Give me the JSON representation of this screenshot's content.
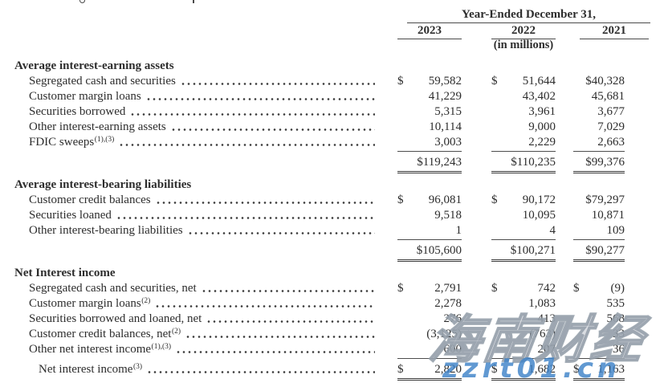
{
  "header": {
    "title": "Year-Ended December 31,",
    "years": [
      "2023",
      "2022",
      "2021"
    ],
    "unit_note": "(in millions)"
  },
  "sections": [
    {
      "title": "Average interest-earning assets",
      "rows": [
        {
          "label": "Segregated cash and securities",
          "sup": "",
          "cells": [
            {
              "d": "$",
              "v": "59,582"
            },
            {
              "d": "$",
              "v": "51,644"
            },
            {
              "d": "",
              "v": "$40,328"
            }
          ]
        },
        {
          "label": "Customer margin loans",
          "sup": "",
          "cells": [
            {
              "d": "",
              "v": "41,229"
            },
            {
              "d": "",
              "v": "43,402"
            },
            {
              "d": "",
              "v": "45,681"
            }
          ]
        },
        {
          "label": "Securities borrowed",
          "sup": "",
          "cells": [
            {
              "d": "",
              "v": "5,315"
            },
            {
              "d": "",
              "v": "3,961"
            },
            {
              "d": "",
              "v": "3,677"
            }
          ]
        },
        {
          "label": "Other interest-earning assets",
          "sup": "",
          "cells": [
            {
              "d": "",
              "v": "10,114"
            },
            {
              "d": "",
              "v": "9,000"
            },
            {
              "d": "",
              "v": "7,029"
            }
          ]
        },
        {
          "label": "FDIC sweeps",
          "sup": "(1),(3)",
          "rule_below": true,
          "cells": [
            {
              "d": "",
              "v": "3,003"
            },
            {
              "d": "",
              "v": "2,229"
            },
            {
              "d": "",
              "v": "2,663"
            }
          ]
        }
      ],
      "total": {
        "label": "",
        "sup": "",
        "cells": [
          {
            "d": "",
            "v": "$119,243"
          },
          {
            "d": "",
            "v": "$110,235"
          },
          {
            "d": "",
            "v": "$99,376"
          }
        ]
      }
    },
    {
      "title": "Average interest-bearing liabilities",
      "rows": [
        {
          "label": "Customer credit balances",
          "sup": "",
          "cells": [
            {
              "d": "$",
              "v": "96,081"
            },
            {
              "d": "$",
              "v": "90,172"
            },
            {
              "d": "",
              "v": "$79,297"
            }
          ]
        },
        {
          "label": "Securities loaned",
          "sup": "",
          "cells": [
            {
              "d": "",
              "v": "9,518"
            },
            {
              "d": "",
              "v": "10,095"
            },
            {
              "d": "",
              "v": "10,871"
            }
          ]
        },
        {
          "label": "Other interest-bearing liabilities",
          "sup": "",
          "rule_below": true,
          "cells": [
            {
              "d": "",
              "v": "1"
            },
            {
              "d": "",
              "v": "4"
            },
            {
              "d": "",
              "v": "109"
            }
          ]
        }
      ],
      "total": {
        "label": "",
        "sup": "",
        "cells": [
          {
            "d": "",
            "v": "$105,600"
          },
          {
            "d": "",
            "v": "$100,271"
          },
          {
            "d": "",
            "v": "$90,277"
          }
        ]
      }
    },
    {
      "title": "Net Interest income",
      "rows": [
        {
          "label": "Segregated cash and securities, net",
          "sup": "",
          "cells": [
            {
              "d": "$",
              "v": "2,791"
            },
            {
              "d": "$",
              "v": "742"
            },
            {
              "d": "$",
              "v": "(9)"
            }
          ]
        },
        {
          "label": "Customer margin loans",
          "sup": "(2)",
          "cells": [
            {
              "d": "",
              "v": "2,278"
            },
            {
              "d": "",
              "v": "1,083"
            },
            {
              "d": "",
              "v": "535"
            }
          ]
        },
        {
          "label": "Securities borrowed and loaned, net",
          "sup": "",
          "cells": [
            {
              "d": "",
              "v": "276"
            },
            {
              "d": "",
              "v": "413"
            },
            {
              "d": "",
              "v": "568"
            }
          ]
        },
        {
          "label": "Customer credit balances, net",
          "sup": "(2)",
          "cells": [
            {
              "d": "",
              "v": "(3,125)"
            },
            {
              "d": "",
              "v": "(763)"
            },
            {
              "d": "",
              "v": "33"
            }
          ]
        },
        {
          "label": "Other net interest income",
          "sup": "(1),(3)",
          "rule_below": true,
          "cells": [
            {
              "d": "",
              "v": "600"
            },
            {
              "d": "",
              "v": "207"
            },
            {
              "d": "",
              "v": "36"
            }
          ]
        }
      ],
      "grand_total": {
        "label": "Net interest income",
        "sup": "(3)",
        "cells": [
          {
            "d": "$",
            "v": "2,820"
          },
          {
            "d": "$",
            "v": "1,682"
          },
          {
            "d": "$",
            "v": "1,163"
          }
        ]
      }
    }
  ],
  "watermark": {
    "cn_text": "海南财经",
    "url_text": "zzrt01.cn",
    "url_color": "#3e82c8",
    "outline_color": "#8894a0"
  }
}
